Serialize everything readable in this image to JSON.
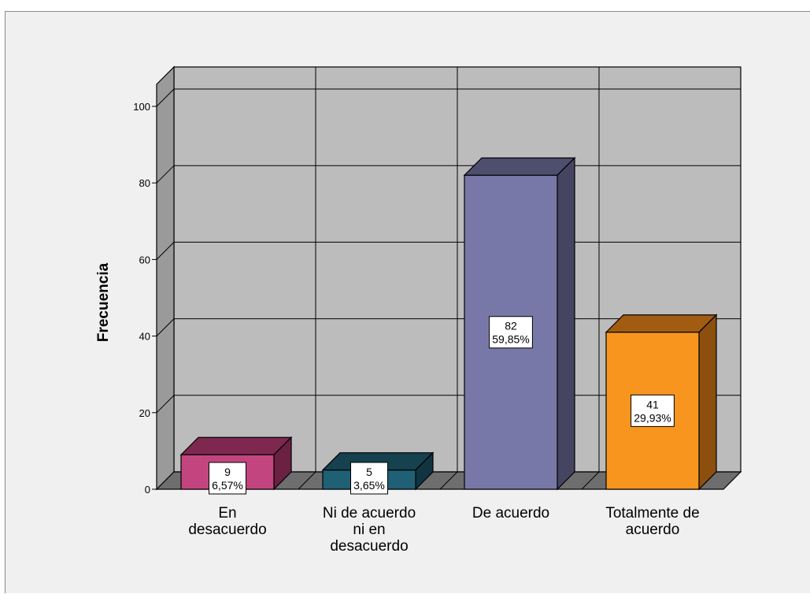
{
  "chart_data": {
    "type": "bar",
    "ylabel": "Frecuencia",
    "ylim": [
      0,
      100
    ],
    "yticks": [
      0,
      20,
      40,
      60,
      80,
      100
    ],
    "grid": true,
    "categories": [
      [
        "En",
        "desacuerdo"
      ],
      [
        "Ni de acuerdo",
        "ni en",
        "desacuerdo"
      ],
      [
        "De acuerdo"
      ],
      [
        "Totalmente de",
        "acuerdo"
      ]
    ],
    "values": [
      9,
      5,
      82,
      41
    ],
    "data_labels": [
      [
        "9",
        "6,57%"
      ],
      [
        "5",
        "3,65%"
      ],
      [
        "82",
        "59,85%"
      ],
      [
        "41",
        "29,93%"
      ]
    ],
    "colors": [
      {
        "front": "#c3457f",
        "top": "#7e2850",
        "side": "#6a2143"
      },
      {
        "front": "#1f6075",
        "top": "#16414f",
        "side": "#113540"
      },
      {
        "front": "#7878a8",
        "top": "#4e4e6e",
        "side": "#454562"
      },
      {
        "front": "#f7951e",
        "top": "#a25c12",
        "side": "#8c4f0e"
      }
    ]
  }
}
